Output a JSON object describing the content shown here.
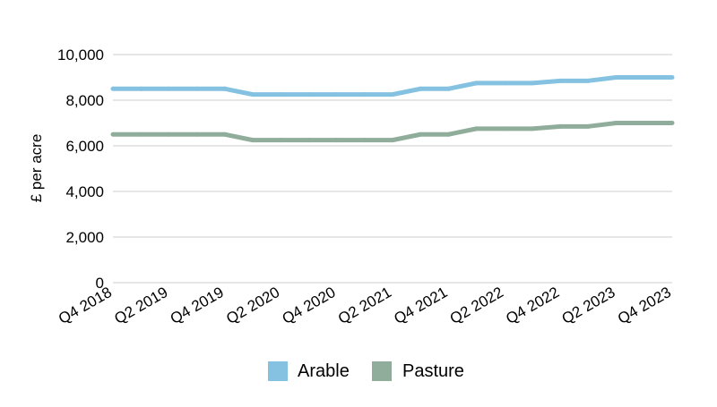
{
  "chart_data": {
    "type": "line",
    "title": "",
    "xlabel": "",
    "ylabel": "£ per acre",
    "ylim": [
      0,
      10000
    ],
    "yticks": [
      0,
      2000,
      4000,
      6000,
      8000,
      10000
    ],
    "ytick_labels": [
      "0",
      "2,000",
      "4,000",
      "6,000",
      "8,000",
      "10,000"
    ],
    "x": [
      "Q4 2018",
      "Q1 2019",
      "Q2 2019",
      "Q3 2019",
      "Q4 2019",
      "Q1 2020",
      "Q2 2020",
      "Q3 2020",
      "Q4 2020",
      "Q1 2021",
      "Q2 2021",
      "Q3 2021",
      "Q4 2021",
      "Q1 2022",
      "Q2 2022",
      "Q3 2022",
      "Q4 2022",
      "Q1 2023",
      "Q2 2023",
      "Q3 2023",
      "Q4 2023"
    ],
    "xtick_labels": [
      "Q4 2018",
      "Q2 2019",
      "Q4 2019",
      "Q2 2020",
      "Q4 2020",
      "Q2 2021",
      "Q4 2021",
      "Q2 2022",
      "Q4 2022",
      "Q2 2023",
      "Q4 2023"
    ],
    "grid": true,
    "legend_position": "bottom",
    "series": [
      {
        "name": "Arable",
        "color": "#85c1e0",
        "values": [
          8500,
          8500,
          8500,
          8500,
          8500,
          8250,
          8250,
          8250,
          8250,
          8250,
          8250,
          8500,
          8500,
          8750,
          8750,
          8750,
          8850,
          8850,
          9000,
          9000,
          9000
        ]
      },
      {
        "name": "Pasture",
        "color": "#8fad9a",
        "values": [
          6500,
          6500,
          6500,
          6500,
          6500,
          6250,
          6250,
          6250,
          6250,
          6250,
          6250,
          6500,
          6500,
          6750,
          6750,
          6750,
          6850,
          6850,
          7000,
          7000,
          7000
        ]
      }
    ]
  }
}
